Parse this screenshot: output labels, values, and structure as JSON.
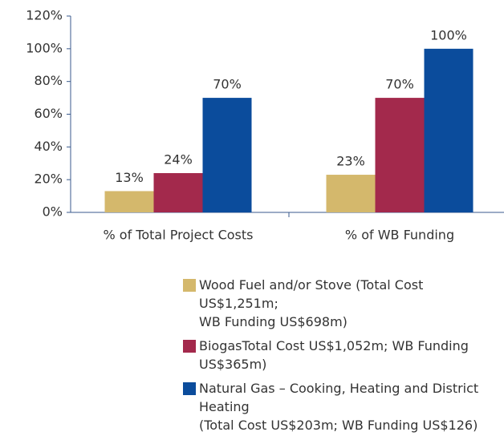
{
  "chart_data": {
    "type": "bar",
    "categories": [
      "% of Total Project Costs",
      "% of WB Funding"
    ],
    "series": [
      {
        "name": "Wood Fuel and/or Stove (Total Cost US$1,251m;\nWB Funding US$698m)",
        "color": "#d4b86c",
        "values": [
          13,
          23
        ],
        "value_labels": [
          "13%",
          "23%"
        ]
      },
      {
        "name": "BiogasTotal Cost US$1,052m; WB Funding US$365m)",
        "color": "#a3294c",
        "values": [
          24,
          70
        ],
        "value_labels": [
          "24%",
          "70%"
        ]
      },
      {
        "name": "Natural Gas – Cooking, Heating and District Heating\n(Total Cost US$203m; WB Funding US$126)",
        "color": "#0b4c9c",
        "values": [
          70,
          100
        ],
        "value_labels": [
          "70%",
          "100%"
        ]
      }
    ],
    "ylim": [
      0,
      120
    ],
    "yticks": [
      {
        "value": 0,
        "label": "0%"
      },
      {
        "value": 20,
        "label": "20%"
      },
      {
        "value": 40,
        "label": "40%"
      },
      {
        "value": 60,
        "label": "60%"
      },
      {
        "value": 80,
        "label": "80%"
      },
      {
        "value": 100,
        "label": "100%"
      },
      {
        "value": 120,
        "label": "120%"
      }
    ],
    "grid": false
  }
}
